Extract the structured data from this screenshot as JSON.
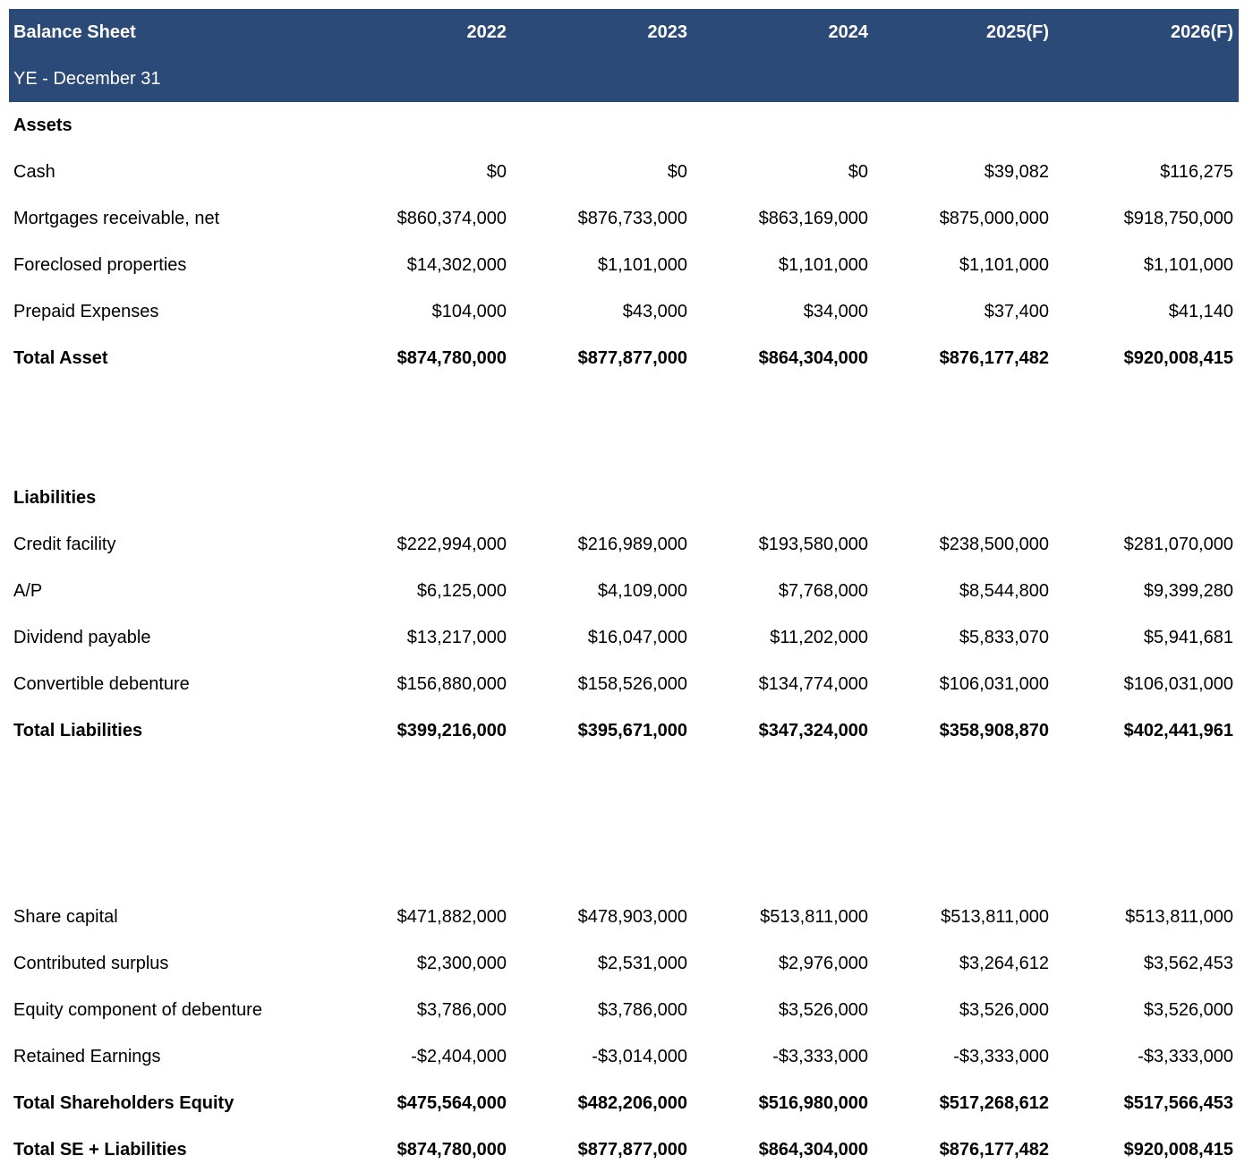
{
  "header": {
    "title": "Balance Sheet",
    "subtitle": "YE - December 31",
    "years": [
      "2022",
      "2023",
      "2024",
      "2025(F)",
      "2026(F)"
    ]
  },
  "assets": {
    "heading": "Assets",
    "rows": [
      {
        "label": "Cash",
        "values": [
          "$0",
          "$0",
          "$0",
          "$39,082",
          "$116,275"
        ]
      },
      {
        "label": "Mortgages receivable, net",
        "values": [
          "$860,374,000",
          "$876,733,000",
          "$863,169,000",
          "$875,000,000",
          "$918,750,000"
        ]
      },
      {
        "label": "Foreclosed properties",
        "values": [
          "$14,302,000",
          "$1,101,000",
          "$1,101,000",
          "$1,101,000",
          "$1,101,000"
        ]
      },
      {
        "label": "Prepaid Expenses",
        "values": [
          "$104,000",
          "$43,000",
          "$34,000",
          "$37,400",
          "$41,140"
        ]
      }
    ],
    "total": {
      "label": "Total Asset",
      "values": [
        "$874,780,000",
        "$877,877,000",
        "$864,304,000",
        "$876,177,482",
        "$920,008,415"
      ]
    }
  },
  "liabilities": {
    "heading": "Liabilities",
    "rows": [
      {
        "label": "Credit facility",
        "values": [
          "$222,994,000",
          "$216,989,000",
          "$193,580,000",
          "$238,500,000",
          "$281,070,000"
        ]
      },
      {
        "label": "A/P",
        "values": [
          "$6,125,000",
          "$4,109,000",
          "$7,768,000",
          "$8,544,800",
          "$9,399,280"
        ]
      },
      {
        "label": "Dividend payable",
        "values": [
          "$13,217,000",
          "$16,047,000",
          "$11,202,000",
          "$5,833,070",
          "$5,941,681"
        ]
      },
      {
        "label": "Convertible debenture",
        "values": [
          "$156,880,000",
          "$158,526,000",
          "$134,774,000",
          "$106,031,000",
          "$106,031,000"
        ]
      }
    ],
    "total": {
      "label": "Total Liabilities",
      "values": [
        "$399,216,000",
        "$395,671,000",
        "$347,324,000",
        "$358,908,870",
        "$402,441,961"
      ]
    }
  },
  "equity": {
    "rows": [
      {
        "label": "Share capital",
        "values": [
          "$471,882,000",
          "$478,903,000",
          "$513,811,000",
          "$513,811,000",
          "$513,811,000"
        ]
      },
      {
        "label": "Contributed surplus",
        "values": [
          "$2,300,000",
          "$2,531,000",
          "$2,976,000",
          "$3,264,612",
          "$3,562,453"
        ]
      },
      {
        "label": "Equity component of debenture",
        "values": [
          "$3,786,000",
          "$3,786,000",
          "$3,526,000",
          "$3,526,000",
          "$3,526,000"
        ]
      },
      {
        "label": "Retained Earnings",
        "values": [
          "-$2,404,000",
          "-$3,014,000",
          "-$3,333,000",
          "-$3,333,000",
          "-$3,333,000"
        ]
      }
    ],
    "total": {
      "label": "Total Shareholders Equity",
      "values": [
        "$475,564,000",
        "$482,206,000",
        "$516,980,000",
        "$517,268,612",
        "$517,566,453"
      ]
    },
    "grand_total": {
      "label": "Total SE + Liabilities",
      "values": [
        "$874,780,000",
        "$877,877,000",
        "$864,304,000",
        "$876,177,482",
        "$920,008,415"
      ]
    }
  },
  "colors": {
    "header_bg": "#2c4a78",
    "header_text": "#ffffff"
  }
}
